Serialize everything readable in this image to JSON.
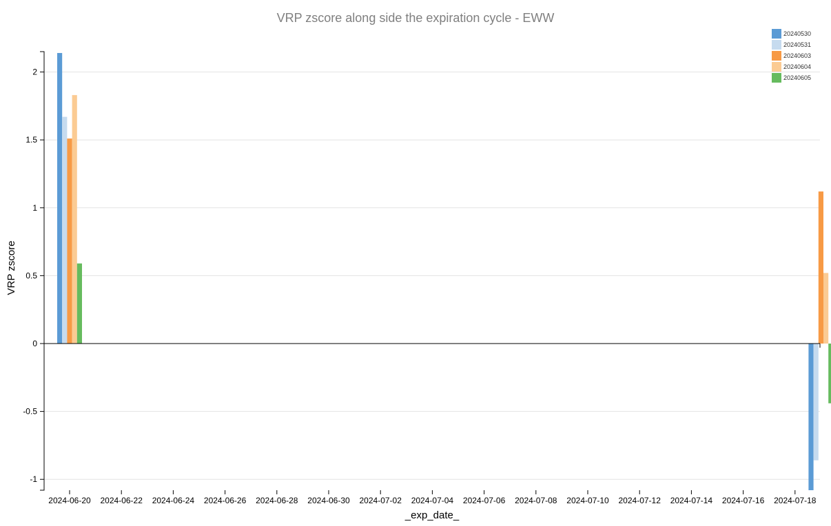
{
  "chart_data": {
    "type": "bar",
    "title": "VRP zscore along side the expiration cycle - EWW",
    "xlabel": "_exp_date_",
    "ylabel": "VRP zscore",
    "ylim": [
      -1.08,
      2.15
    ],
    "yticks": [
      -1,
      -0.5,
      0,
      0.5,
      1,
      1.5,
      2
    ],
    "ytick_labels": [
      "-1",
      "-0.5",
      "0",
      "0.5",
      "1",
      "1.5",
      "2"
    ],
    "grid": true,
    "legend_position": "top-right",
    "categories": [
      "2024-06-20",
      "2024-07-19"
    ],
    "xticks": [
      "2024-06-20",
      "2024-06-22",
      "2024-06-24",
      "2024-06-26",
      "2024-06-28",
      "2024-06-30",
      "2024-07-02",
      "2024-07-04",
      "2024-07-06",
      "2024-07-08",
      "2024-07-10",
      "2024-07-12",
      "2024-07-14",
      "2024-07-16",
      "2024-07-18"
    ],
    "series": [
      {
        "name": "20240530",
        "color": "#5b9bd5",
        "values": [
          2.14,
          -1.08
        ]
      },
      {
        "name": "20240531",
        "color": "#c6dbef",
        "values": [
          1.67,
          -0.86
        ]
      },
      {
        "name": "20240603",
        "color": "#f79a45",
        "values": [
          1.51,
          1.12
        ]
      },
      {
        "name": "20240604",
        "color": "#fbcb93",
        "values": [
          1.83,
          0.52
        ]
      },
      {
        "name": "20240605",
        "color": "#66bb5e",
        "values": [
          0.59,
          -0.44
        ]
      }
    ]
  }
}
